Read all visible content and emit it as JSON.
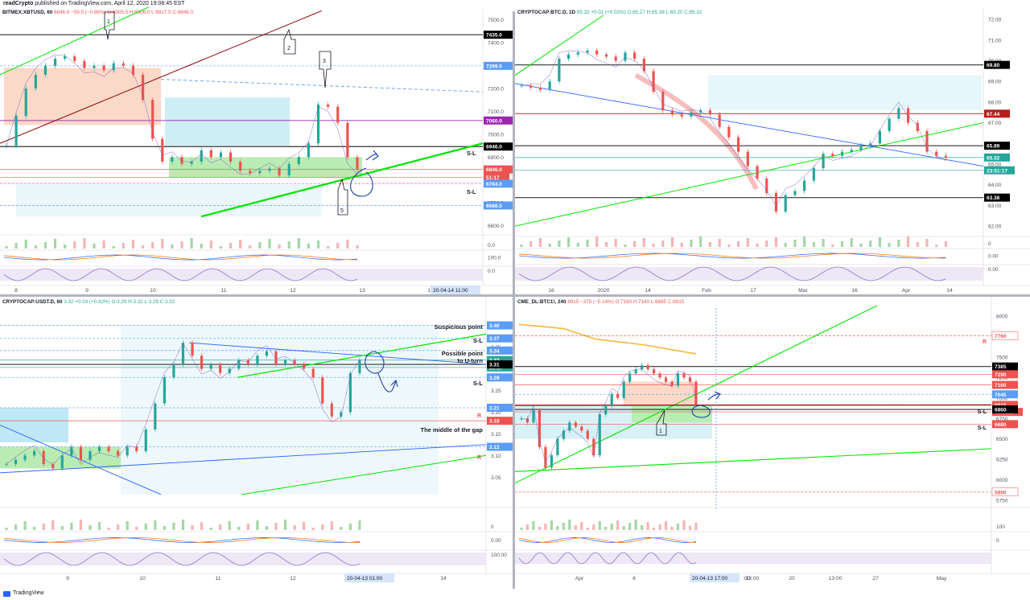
{
  "header": {
    "author": "readCrypto",
    "published": " published on TradingView.com, April 12, 2020 19:08:45 EST"
  },
  "footer": {
    "brand": "TradingView"
  },
  "colors": {
    "up": "#26a69a",
    "down": "#ef5350",
    "green_line": "#00e600",
    "blue_line": "#2962ff"
  },
  "chart_data": [
    {
      "type": "candlestick",
      "panel": "top-left",
      "title_symbol": "BITMEX:XBTUSD, 60",
      "title_values": "6846.0  −59.5 (−0.86%)  O:6905.5 H:6906.0 L:6817.5 C:6846.0",
      "y_ticks": [
        "7500.0",
        "7400.0",
        "7300.0",
        "7200.0",
        "7100.0",
        "7000.0",
        "6900.0",
        "6800.0",
        "6700.0",
        "6600.0"
      ],
      "ylim": [
        6560,
        7520
      ],
      "x_ticks": [
        "8",
        "9",
        "10",
        "11",
        "12",
        "13",
        "14"
      ],
      "price_labels": [
        {
          "text": "7435.0",
          "value": 7435,
          "bg": "#000000"
        },
        {
          "text": "7299.0",
          "value": 7299,
          "bg": "#5b9cf6"
        },
        {
          "text": "7060.0",
          "value": 7060,
          "bg": "#9c27b0"
        },
        {
          "text": "6946.0",
          "value": 6946,
          "bg": "#000000"
        },
        {
          "text": "6846.0",
          "value": 6846,
          "bg": "#ef5350"
        },
        {
          "text": "51:17",
          "value": 6812,
          "bg": "#ef5350"
        },
        {
          "text": "6784.0",
          "value": 6784,
          "bg": "#5b9cf6"
        },
        {
          "text": "6688.5",
          "value": 6688.5,
          "bg": "#5b9cf6"
        }
      ],
      "annotations": [
        "1",
        "2",
        "3",
        "5",
        "S-L",
        "S-L"
      ],
      "time_label": "20-04-14   11:00",
      "osc_ticks": [
        "0.0",
        "100.0",
        "0.0"
      ],
      "close_path": [
        6950,
        7080,
        7200,
        7260,
        7300,
        7330,
        7340,
        7320,
        7290,
        7300,
        7280,
        7310,
        7300,
        7260,
        7150,
        6980,
        6880,
        6900,
        6870,
        6880,
        6930,
        6900,
        6920,
        6880,
        6840,
        6830,
        6840,
        6850,
        6820,
        6870,
        6900,
        6960,
        7130,
        7120,
        7050,
        6900,
        6846
      ]
    },
    {
      "type": "candlestick",
      "panel": "top-right",
      "title_symbol": "CRYPTOCAP:BTC.D, 1D",
      "title_values": "65.32  +0.01 (+0.02%)  O:65.27 H:65.38 L:65.20 C:65.32",
      "y_ticks": [
        "72.00",
        "71.00",
        "70.00",
        "69.00",
        "68.00",
        "67.00",
        "66.00",
        "65.00",
        "64.00",
        "63.00",
        "62.00"
      ],
      "ylim": [
        61.5,
        72.2
      ],
      "x_ticks": [
        "16",
        "2020",
        "14",
        "Feb",
        "17",
        "Mar",
        "16",
        "Apr",
        "14"
      ],
      "price_labels": [
        {
          "text": "69.80",
          "value": 69.8,
          "bg": "#000000"
        },
        {
          "text": "67.44",
          "value": 67.44,
          "bg": "#b71c1c"
        },
        {
          "text": "65.89",
          "value": 65.89,
          "bg": "#000000"
        },
        {
          "text": "65.32",
          "value": 65.32,
          "bg": "#26a69a"
        },
        {
          "text": "23:51:17",
          "value": 64.7,
          "bg": "#26a69a"
        },
        {
          "text": "63.38",
          "value": 63.38,
          "bg": "#000000"
        }
      ],
      "osc_ticks": [
        "0",
        "0.00",
        "0.00"
      ],
      "close_path": [
        68.8,
        68.7,
        68.6,
        69.0,
        70.1,
        70.3,
        70.4,
        70.5,
        70.3,
        70.2,
        70.0,
        70.4,
        70.1,
        69.5,
        68.5,
        67.6,
        67.4,
        67.3,
        67.5,
        67.6,
        67.4,
        66.8,
        66.3,
        65.6,
        64.9,
        64.3,
        63.6,
        62.7,
        63.5,
        63.7,
        64.2,
        64.8,
        65.5,
        65.4,
        65.6,
        65.7,
        65.9,
        66.0,
        66.6,
        67.2,
        67.7,
        67.0,
        66.6,
        65.6,
        65.4,
        65.32
      ]
    },
    {
      "type": "candlestick",
      "panel": "bottom-left",
      "title_symbol": "CRYPTOCAP:USDT.D, 60",
      "title_values": "3.32  +0.03 (+0.82%)  O:3.29 H:3.32 L:3.29 C:3.32",
      "y_ticks": [
        "3.40",
        "3.35",
        "3.30",
        "3.25",
        "3.20",
        "3.15",
        "3.10",
        "3.05"
      ],
      "ylim": [
        2.98,
        3.44
      ],
      "x_ticks": [
        "9",
        "10",
        "11",
        "12",
        "13",
        "14"
      ],
      "price_labels": [
        {
          "text": "3.40",
          "value": 3.4,
          "bg": "#5b9cf6"
        },
        {
          "text": "3.37",
          "value": 3.37,
          "bg": "#5b9cf6"
        },
        {
          "text": "3.34",
          "value": 3.342,
          "bg": "#5b9cf6"
        },
        {
          "text": "3.32",
          "value": 3.32,
          "bg": "#26a69a"
        },
        {
          "text": "51:17",
          "value": 3.303,
          "bg": "#26a69a"
        },
        {
          "text": "3.31",
          "value": 3.31,
          "bg": "#000000"
        },
        {
          "text": "3.28",
          "value": 3.28,
          "bg": "#5b9cf6"
        },
        {
          "text": "3.21",
          "value": 3.21,
          "bg": "#5b9cf6"
        },
        {
          "text": "3.18",
          "value": 3.18,
          "bg": "#ef5350"
        },
        {
          "text": "3.12",
          "value": 3.12,
          "bg": "#5b9cf6"
        }
      ],
      "annotations": [
        "Suspicious point",
        "S-L",
        "Possible point",
        "to U-turn",
        "S-L",
        "R",
        "The middle of the gap",
        "R"
      ],
      "time_label": "20-04-13   01:00",
      "osc_ticks": [
        "0",
        "0.00",
        "100.00"
      ],
      "close_path": [
        3.08,
        3.09,
        3.1,
        3.11,
        3.08,
        3.07,
        3.1,
        3.12,
        3.09,
        3.11,
        3.12,
        3.11,
        3.1,
        3.12,
        3.11,
        3.16,
        3.22,
        3.28,
        3.31,
        3.36,
        3.33,
        3.3,
        3.31,
        3.29,
        3.3,
        3.32,
        3.31,
        3.33,
        3.34,
        3.31,
        3.32,
        3.31,
        3.3,
        3.28,
        3.22,
        3.19,
        3.2,
        3.29,
        3.32
      ]
    },
    {
      "type": "candlestick",
      "panel": "bottom-right",
      "title_symbol": "CME_DL:BTC1!, 240",
      "title_values": "6915  −375 (−5.14%)  O:7160 H:7160 L:6885 C:6915",
      "y_ticks": [
        "8000",
        "7750",
        "7500",
        "7250",
        "7000",
        "6750",
        "6500",
        "6250",
        "6000",
        "5750"
      ],
      "ylim": [
        5700,
        8100
      ],
      "x_ticks": [
        "Apr",
        "6",
        "13:00",
        "20",
        "13:00",
        "27",
        "May"
      ],
      "price_labels": [
        {
          "text": "7760",
          "value": 7760,
          "bg": "#ffffff",
          "fg": "#ef5350"
        },
        {
          "text": "7385",
          "value": 7385,
          "bg": "#000000"
        },
        {
          "text": "7290",
          "value": 7290,
          "bg": "#ef5350"
        },
        {
          "text": "7160",
          "value": 7160,
          "bg": "#ef5350"
        },
        {
          "text": "7045",
          "value": 7045,
          "bg": "#5b9cf6"
        },
        {
          "text": "6915",
          "value": 6915,
          "bg": "#ef5350"
        },
        {
          "text": "01:51:17",
          "value": 6830,
          "bg": "#ef5350"
        },
        {
          "text": "6860",
          "value": 6860,
          "bg": "#000000"
        },
        {
          "text": "6680",
          "value": 6680,
          "bg": "#ef5350"
        },
        {
          "text": "5850",
          "value": 5850,
          "bg": "#ffffff",
          "fg": "#ef5350"
        }
      ],
      "annotations": [
        "R",
        "S-L",
        "S-L",
        "1"
      ],
      "time_label": "20-04-13   17:00",
      "time_after": ":00",
      "osc_ticks": [
        "100",
        "0"
      ],
      "close_path": [
        6750,
        6700,
        6850,
        6400,
        6150,
        6300,
        6500,
        6600,
        6700,
        6650,
        6600,
        6500,
        6300,
        6800,
        6900,
        7050,
        7000,
        7200,
        7300,
        7350,
        7400,
        7350,
        7300,
        7250,
        7200,
        7150,
        7300,
        7250,
        7200,
        6915
      ]
    }
  ]
}
